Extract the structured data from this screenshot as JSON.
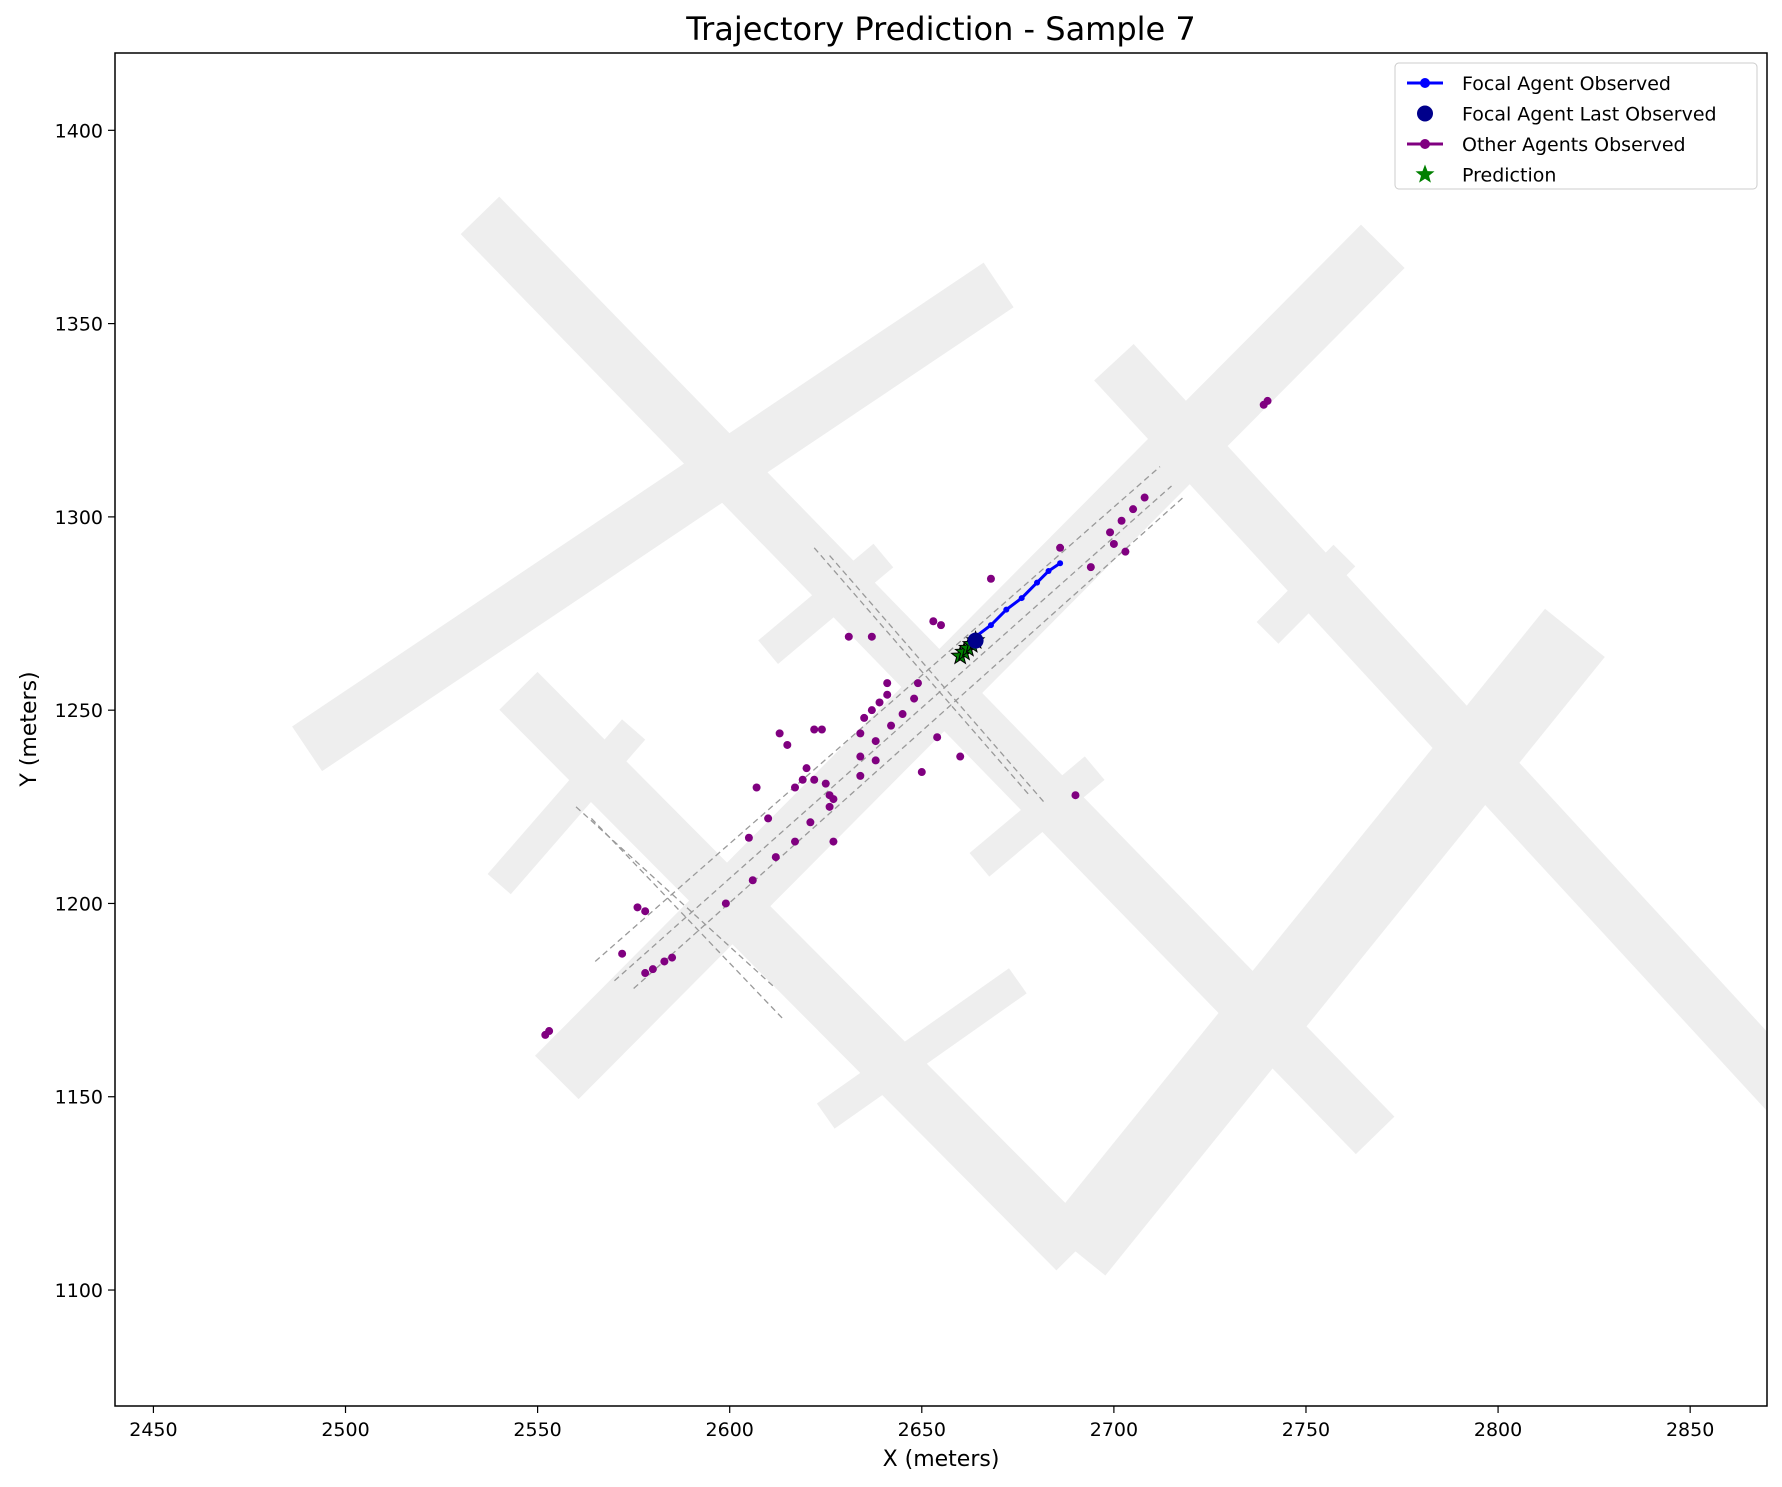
{
  "chart_data": {
    "type": "scatter",
    "title": "Trajectory Prediction - Sample 7",
    "xlabel": "X (meters)",
    "ylabel": "Y (meters)",
    "xlim": [
      2440,
      2870
    ],
    "ylim": [
      1070,
      1420
    ],
    "xticks": [
      2450,
      2500,
      2550,
      2600,
      2650,
      2700,
      2750,
      2800,
      2850
    ],
    "yticks": [
      1100,
      1150,
      1200,
      1250,
      1300,
      1350,
      1400
    ],
    "grid": false,
    "legend_position": "top-right",
    "legend": [
      {
        "label": "Focal Agent Observed",
        "color": "#0000ff",
        "marker": "line-dot"
      },
      {
        "label": "Focal Agent Last Observed",
        "color": "#00008b",
        "marker": "circle"
      },
      {
        "label": "Other Agents Observed",
        "color": "#800080",
        "marker": "line-dot"
      },
      {
        "label": "Prediction",
        "color": "#008000",
        "marker": "star"
      }
    ],
    "map": {
      "fill_color": "#eeeeee",
      "lane_color": "#999999",
      "roads": [
        {
          "name": "main-diagonal",
          "from": [
            2555,
            1155
          ],
          "to": [
            2715,
            1315
          ],
          "half_width": 8
        },
        {
          "name": "upper-diagonal",
          "from": [
            2720,
            1320
          ],
          "to": [
            2770,
            1370
          ],
          "half_width": 8
        },
        {
          "name": "upper-diagonal-sw",
          "from": [
            2490,
            1240
          ],
          "to": [
            2670,
            1360
          ],
          "half_width": 7
        },
        {
          "name": "cross-road-nw",
          "from": [
            2535,
            1378
          ],
          "to": [
            2768,
            1140
          ],
          "half_width": 7
        },
        {
          "name": "cross-road-sw",
          "from": [
            2545,
            1255
          ],
          "to": [
            2690,
            1110
          ],
          "half_width": 7
        },
        {
          "name": "cross-road-ne",
          "from": [
            2700,
            1340
          ],
          "to": [
            2890,
            1135
          ],
          "half_width": 7
        },
        {
          "name": "lower-diagonal",
          "from": [
            2690,
            1110
          ],
          "to": [
            2820,
            1270
          ],
          "half_width": 10
        },
        {
          "name": "stub-1",
          "from": [
            2540,
            1205
          ],
          "to": [
            2575,
            1245
          ],
          "half_width": 4
        },
        {
          "name": "stub-2",
          "from": [
            2610,
            1265
          ],
          "to": [
            2640,
            1290
          ],
          "half_width": 4
        },
        {
          "name": "stub-3",
          "from": [
            2625,
            1145
          ],
          "to": [
            2675,
            1180
          ],
          "half_width": 4
        },
        {
          "name": "stub-4",
          "from": [
            2665,
            1210
          ],
          "to": [
            2695,
            1235
          ],
          "half_width": 4
        },
        {
          "name": "stub-5",
          "from": [
            2740,
            1270
          ],
          "to": [
            2760,
            1290
          ],
          "half_width": 4
        }
      ],
      "lanes": [
        {
          "from": [
            2565,
            1185
          ],
          "to": [
            2712,
            1313
          ]
        },
        {
          "from": [
            2570,
            1180
          ],
          "to": [
            2715,
            1308
          ]
        },
        {
          "from": [
            2575,
            1178
          ],
          "to": [
            2718,
            1305
          ]
        },
        {
          "from": [
            2622,
            1292
          ],
          "to": [
            2678,
            1228
          ]
        },
        {
          "from": [
            2626,
            1290
          ],
          "to": [
            2682,
            1226
          ]
        },
        {
          "from": [
            2560,
            1225
          ],
          "to": [
            2612,
            1178
          ]
        },
        {
          "from": [
            2564,
            1222
          ],
          "to": [
            2614,
            1170
          ]
        }
      ]
    },
    "series": [
      {
        "name": "Focal Agent Observed",
        "color": "#0000ff",
        "points": [
          [
            2664,
            1269
          ],
          [
            2668,
            1272
          ],
          [
            2672,
            1276
          ],
          [
            2676,
            1279
          ],
          [
            2680,
            1283
          ],
          [
            2683,
            1286
          ],
          [
            2686,
            1288
          ]
        ]
      },
      {
        "name": "Focal Agent Last Observed",
        "color": "#00008b",
        "points": [
          [
            2664,
            1268
          ]
        ]
      },
      {
        "name": "Other Agents Observed",
        "color": "#800080",
        "points": [
          [
            2634,
            1238
          ],
          [
            2638,
            1242
          ],
          [
            2642,
            1246
          ],
          [
            2645,
            1249
          ],
          [
            2648,
            1253
          ],
          [
            2649,
            1257
          ],
          [
            2635,
            1248
          ],
          [
            2637,
            1250
          ],
          [
            2639,
            1252
          ],
          [
            2641,
            1254
          ],
          [
            2699,
            1296
          ],
          [
            2702,
            1299
          ],
          [
            2705,
            1302
          ],
          [
            2708,
            1305
          ],
          [
            2625,
            1231
          ],
          [
            2626,
            1228
          ],
          [
            2626,
            1225
          ],
          [
            2627,
            1227
          ],
          [
            2617,
            1230
          ],
          [
            2619,
            1232
          ],
          [
            2622,
            1232
          ],
          [
            2653,
            1273
          ],
          [
            2655,
            1272
          ],
          [
            2654,
            1243
          ],
          [
            2660,
            1238
          ],
          [
            2650,
            1234
          ],
          [
            2641,
            1257
          ],
          [
            2638,
            1237
          ],
          [
            2634,
            1233
          ],
          [
            2634,
            1244
          ],
          [
            2631,
            1269
          ],
          [
            2637,
            1269
          ],
          [
            2668,
            1284
          ],
          [
            2686,
            1292
          ],
          [
            2694,
            1287
          ],
          [
            2703,
            1291
          ],
          [
            2700,
            1293
          ],
          [
            2690,
            1228
          ],
          [
            2740,
            1330
          ],
          [
            2739,
            1329
          ],
          [
            2613,
            1244
          ],
          [
            2615,
            1241
          ],
          [
            2622,
            1245
          ],
          [
            2624,
            1245
          ],
          [
            2620,
            1235
          ],
          [
            2607,
            1230
          ],
          [
            2610,
            1222
          ],
          [
            2612,
            1212
          ],
          [
            2617,
            1216
          ],
          [
            2621,
            1221
          ],
          [
            2627,
            1216
          ],
          [
            2605,
            1217
          ],
          [
            2606,
            1206
          ],
          [
            2599,
            1200
          ],
          [
            2576,
            1199
          ],
          [
            2578,
            1198
          ],
          [
            2572,
            1187
          ],
          [
            2578,
            1182
          ],
          [
            2580,
            1183
          ],
          [
            2583,
            1185
          ],
          [
            2585,
            1186
          ],
          [
            2552,
            1166
          ],
          [
            2553,
            1167
          ]
        ]
      },
      {
        "name": "Prediction",
        "color": "#008000",
        "points": [
          [
            2660,
            1264
          ],
          [
            2661,
            1265
          ],
          [
            2662,
            1266
          ],
          [
            2663,
            1267
          ],
          [
            2664,
            1268
          ]
        ]
      }
    ]
  }
}
